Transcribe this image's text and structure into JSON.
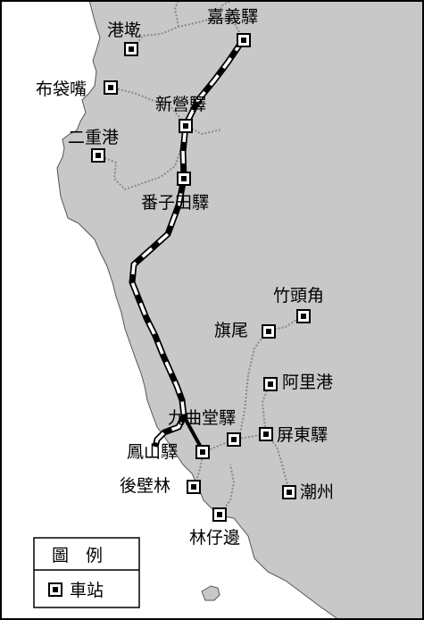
{
  "map": {
    "colors": {
      "land": "#c8c8c8",
      "sea": "#ffffff",
      "rail_main": "#000000",
      "rail_branch": "#888888",
      "station_fill": "#ffffff",
      "station_core": "#000000"
    },
    "stations": [
      {
        "id": "gangwang",
        "name": "港墘"
      },
      {
        "id": "chiayi",
        "name": "嘉義驛"
      },
      {
        "id": "budai",
        "name": "布袋嘴"
      },
      {
        "id": "xinying",
        "name": "新營驛"
      },
      {
        "id": "erchonggang",
        "name": "二重港"
      },
      {
        "id": "fanzitian",
        "name": "番子田驛"
      },
      {
        "id": "zhutoujiao",
        "name": "竹頭角"
      },
      {
        "id": "qiwei",
        "name": "旗尾"
      },
      {
        "id": "aligang",
        "name": "阿里港"
      },
      {
        "id": "jiuqutang",
        "name": "九曲堂驛"
      },
      {
        "id": "pingdong",
        "name": "屏東驛"
      },
      {
        "id": "fengshan",
        "name": "鳳山驛"
      },
      {
        "id": "houbilin",
        "name": "後壁林"
      },
      {
        "id": "chaozhou",
        "name": "潮州"
      },
      {
        "id": "linzibian",
        "name": "林仔邊"
      }
    ],
    "legend": {
      "title": "圖　例",
      "item_label": "車站",
      "item_icon": "station-icon"
    }
  }
}
